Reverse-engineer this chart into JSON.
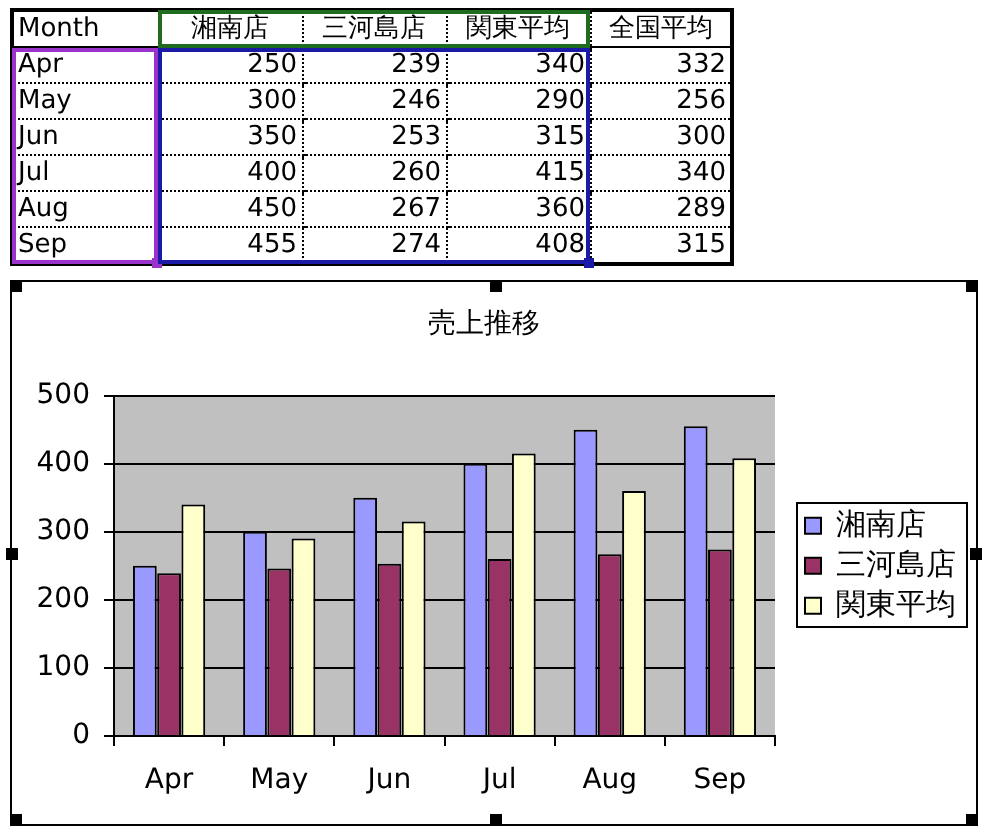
{
  "chart_data": [
    {
      "type": "other",
      "xlabel": "Month",
      "categories": [
        "Apr",
        "May",
        "Jun",
        "Jul",
        "Aug",
        "Sep"
      ],
      "series": [
        {
          "name": "湘南店",
          "values": [
            250,
            300,
            350,
            400,
            450,
            455
          ]
        },
        {
          "name": "三河島店",
          "values": [
            239,
            246,
            253,
            260,
            267,
            274
          ]
        },
        {
          "name": "関東平均",
          "values": [
            340,
            290,
            315,
            415,
            360,
            408
          ]
        },
        {
          "name": "全国平均",
          "values": [
            332,
            256,
            300,
            340,
            289,
            315
          ]
        }
      ],
      "data_labels": true
    },
    {
      "type": "bar",
      "title": "売上推移",
      "categories": [
        "Apr",
        "May",
        "Jun",
        "Jul",
        "Aug",
        "Sep"
      ],
      "series": [
        {
          "name": "湘南店",
          "color": "#9999ff",
          "values": [
            250,
            300,
            350,
            400,
            450,
            455
          ]
        },
        {
          "name": "三河島店",
          "color": "#993366",
          "values": [
            239,
            246,
            253,
            260,
            267,
            274
          ]
        },
        {
          "name": "関東平均",
          "color": "#ffffcc",
          "values": [
            340,
            290,
            315,
            415,
            360,
            408
          ]
        }
      ],
      "ylim": [
        0,
        500
      ],
      "yticks": [
        0,
        100,
        200,
        300,
        400,
        500
      ],
      "grid": "y",
      "legend": "right"
    }
  ]
}
